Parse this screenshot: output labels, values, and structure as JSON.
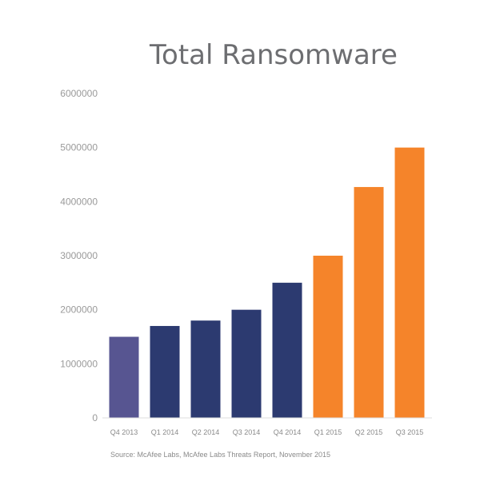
{
  "chart_data": {
    "type": "bar",
    "title": "Total Ransomware",
    "xlabel": "",
    "ylabel": "",
    "categories": [
      "Q4 2013",
      "Q1 2014",
      "Q2 2014",
      "Q3 2014",
      "Q4 2014",
      "Q1 2015",
      "Q2 2015",
      "Q3 2015"
    ],
    "values": [
      1500000,
      1700000,
      1800000,
      2000000,
      2500000,
      3000000,
      4270000,
      5000000
    ],
    "yticks": [
      "0",
      "1000000",
      "2000000",
      "3000000",
      "4000000",
      "5000000",
      "6000000"
    ],
    "ylim": [
      0,
      6000000
    ],
    "grid": false,
    "bar_colors": [
      "#575591",
      "#2c3a70",
      "#2c3a70",
      "#2c3a70",
      "#2c3a70",
      "#f5842a",
      "#f5842a",
      "#f5842a"
    ],
    "source": "Source: McAfee Labs, McAfee Labs Threats Report, November 2015"
  }
}
